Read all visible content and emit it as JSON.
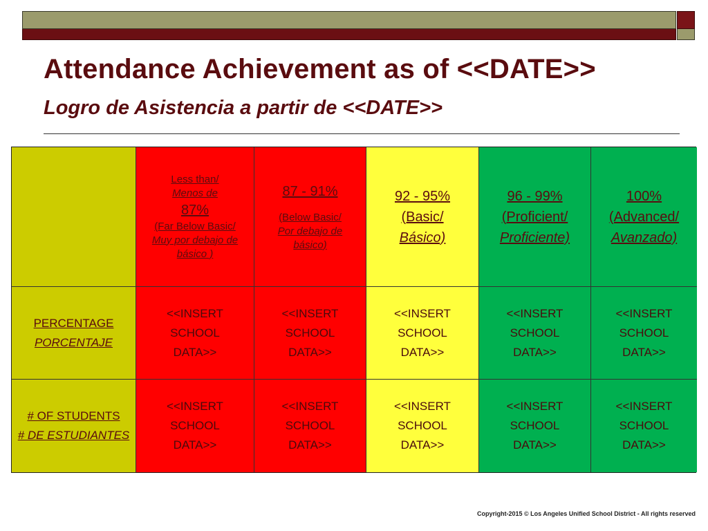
{
  "title": "Attendance Achievement as of <<DATE>>",
  "subtitle": "Logro de Asistencia a partir de <<DATE>>",
  "colors": {
    "title": "#5a0c0f",
    "olive": "#cccc00",
    "red": "#ff0000",
    "yellow": "#ffff3c",
    "green": "#00b050"
  },
  "header": {
    "col1": {
      "line1": "Less than/",
      "line2": "Menos de",
      "line3": "87%",
      "line4": "(Far Below Basic/",
      "line5": "Muy por debajo de",
      "line6": "básico )"
    },
    "col2": {
      "line1": "87 - 91%",
      "line2": "(Below Basic/",
      "line3": "Por debajo de",
      "line4": "básico)"
    },
    "col3": {
      "line1": "92 - 95%",
      "line2": "(Basic/",
      "line3": "Básico)"
    },
    "col4": {
      "line1": "96 - 99%",
      "line2": "(Proficient/",
      "line3": "Proficiente)"
    },
    "col5": {
      "line1": "100%",
      "line2": "(Advanced/",
      "line3": "Avanzado)"
    }
  },
  "rows": [
    {
      "label_en": "PERCENTAGE",
      "label_es": "PORCENTAJE",
      "cells": [
        [
          "<<INSERT",
          "SCHOOL",
          "DATA>>"
        ],
        [
          "<<INSERT",
          "SCHOOL",
          "DATA>>"
        ],
        [
          "<<INSERT",
          "SCHOOL",
          "DATA>>"
        ],
        [
          "<<INSERT",
          "SCHOOL",
          "DATA>>"
        ],
        [
          "<<INSERT",
          "SCHOOL",
          "DATA>>"
        ]
      ]
    },
    {
      "label_en": "# OF STUDENTS",
      "label_es": "# DE ESTUDIANTES",
      "cells": [
        [
          "<<INSERT",
          "SCHOOL",
          "DATA>>"
        ],
        [
          "<<INSERT",
          "SCHOOL",
          "DATA>>"
        ],
        [
          "<<INSERT",
          "SCHOOL",
          "DATA>>"
        ],
        [
          "<<INSERT",
          "SCHOOL",
          "DATA>>"
        ],
        [
          "<<INSERT",
          "SCHOOL",
          "DATA>>"
        ]
      ]
    }
  ],
  "copyright": "Copyright-2015 © Los Angeles Unified School District - All rights reserved"
}
